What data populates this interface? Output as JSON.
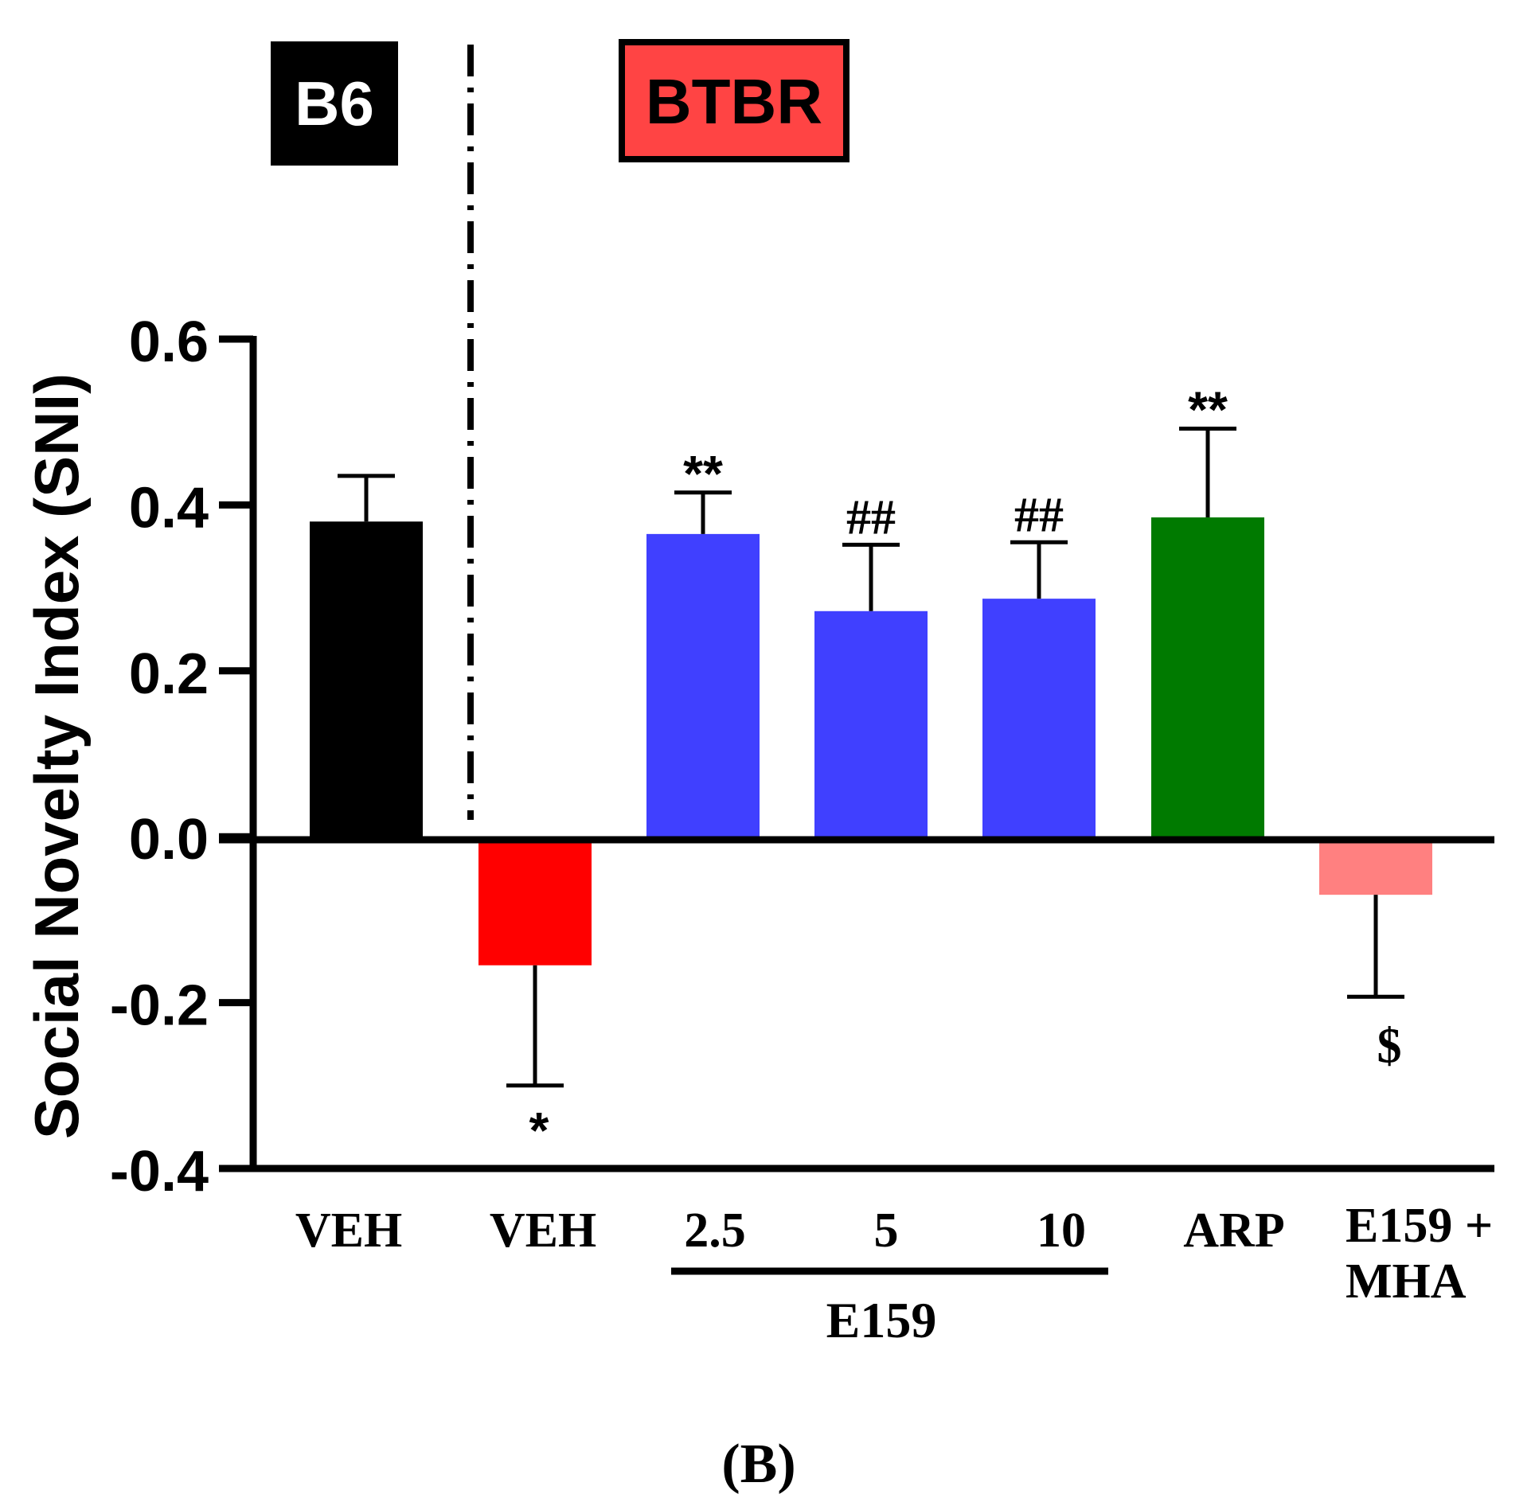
{
  "chart_data": {
    "type": "bar",
    "ylabel": "Social Novelty Index (SNI)",
    "ylim": [
      -0.4,
      0.6
    ],
    "yticks": [
      -0.4,
      -0.2,
      0.0,
      0.2,
      0.4,
      0.6
    ],
    "ytick_labels": [
      "-0.4",
      "-0.2",
      "0.0",
      "0.2",
      "0.4",
      "0.6"
    ],
    "strain_labels": {
      "left": "B6",
      "right": "BTBR"
    },
    "strain_colors": {
      "left_box": "#000000",
      "right_box": "#ff4444"
    },
    "bars": [
      {
        "label": "VEH",
        "value": 0.38,
        "error": 0.055,
        "color": "#000000",
        "annotation": ""
      },
      {
        "label": "VEH",
        "value": -0.155,
        "error": 0.145,
        "color": "#ff0000",
        "annotation": "*"
      },
      {
        "label": "2.5",
        "value": 0.365,
        "error": 0.05,
        "color": "#4040ff",
        "annotation": "**"
      },
      {
        "label": "5",
        "value": 0.272,
        "error": 0.08,
        "color": "#4040ff",
        "annotation": "##"
      },
      {
        "label": "10",
        "value": 0.287,
        "error": 0.068,
        "color": "#4040ff",
        "annotation": "##"
      },
      {
        "label": "ARP",
        "value": 0.385,
        "error": 0.107,
        "color": "#007a00",
        "annotation": "**"
      },
      {
        "label": "E159 + MHA",
        "value": -0.07,
        "error": 0.123,
        "color": "#ff8080",
        "annotation": "$"
      }
    ],
    "group_label": "E159",
    "panel_label": "(B)"
  }
}
